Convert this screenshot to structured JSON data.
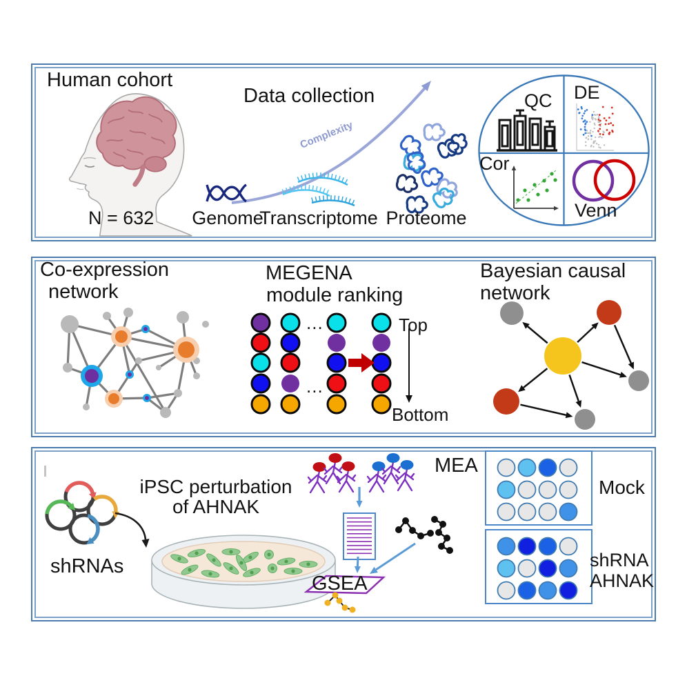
{
  "top_panel": {
    "title": "Human cohort",
    "n_label": "N = 632",
    "data_collection": "Data collection",
    "complexity": "Complexity",
    "omics": [
      "Genome",
      "Transcriptome",
      "Proteome"
    ],
    "quadrants": {
      "qc": "QC",
      "de": "DE",
      "cor": "Cor",
      "venn": "Venn"
    },
    "arrow_color": "#98a4d6",
    "dna_color": "#18277e",
    "rna_colors": [
      "#3fb6ea",
      "#55c6f0",
      "#2fa3dc"
    ],
    "volcano": {
      "blue": "#3b7fd4",
      "red": "#d63226",
      "gray": "#bdbdbd",
      "axis": "#cccccc"
    },
    "scatter": {
      "dot": "#35a535",
      "line": "#56b856",
      "axis": "#3a3a3a",
      "points": [
        [
          16,
          58
        ],
        [
          26,
          44
        ],
        [
          31,
          58
        ],
        [
          40,
          36
        ],
        [
          45,
          50
        ],
        [
          54,
          30
        ],
        [
          58,
          44
        ],
        [
          65,
          20
        ],
        [
          70,
          29
        ]
      ]
    },
    "venn_colors": {
      "left": "#7030a0",
      "right": "#cc0000"
    },
    "proteome_blobs": {
      "colors": [
        "#8fa5dc",
        "#2f63c8",
        "#163a82",
        "#38aade",
        "#2f63c8",
        "#163a82",
        "#1b2f66",
        "#2f63c8",
        "#8fa5dc",
        "#163a82",
        "#38aade"
      ],
      "positions": [
        [
          55,
          19
        ],
        [
          35,
          32
        ],
        [
          72,
          49
        ],
        [
          29,
          60
        ],
        [
          57,
          59
        ],
        [
          85,
          57
        ],
        [
          20,
          90
        ],
        [
          49,
          89
        ],
        [
          84,
          95
        ],
        [
          30,
          124
        ],
        [
          64,
          124
        ]
      ],
      "rotations": [
        0,
        40,
        -20,
        10,
        80,
        -60,
        15,
        -15,
        30,
        0,
        -30
      ]
    }
  },
  "middle_panel": {
    "coexpression_line1": "Co-expression",
    "coexpression_line2": "network",
    "megena_line1": "MEGENA",
    "megena_line2": "module ranking",
    "ellipsis": "...",
    "rank_top": "Top",
    "rank_bottom": "Bottom",
    "bayesian_line1": "Bayesian causal",
    "bayesian_line2": "network",
    "coexpression_graph": {
      "edge_color": "#7d7d7d",
      "colors": {
        "gray": "#b9b9b9",
        "ring": "#f8cfae",
        "core": "#e87c2d",
        "blue_ring": "#1ea7e8",
        "purple_core": "#6b2f9f"
      },
      "nodes": [
        [
          33,
          32,
          13,
          "gray"
        ],
        [
          87,
          20,
          6,
          "gray"
        ],
        [
          118,
          15,
          7,
          "gray"
        ],
        [
          30,
          95,
          7,
          "gray"
        ],
        [
          133,
          85,
          5,
          "gray"
        ],
        [
          162,
          95,
          4,
          "gray"
        ],
        [
          197,
          22,
          9,
          "gray"
        ],
        [
          230,
          32,
          5,
          "gray"
        ],
        [
          217,
          85,
          5,
          "gray"
        ],
        [
          217,
          107,
          5,
          "gray"
        ],
        [
          190,
          132,
          6,
          "gray"
        ],
        [
          172,
          160,
          8,
          "gray"
        ],
        [
          57,
          152,
          5,
          "gray"
        ],
        [
          108,
          50,
          15,
          "hubO",
          9
        ],
        [
          202,
          69,
          19,
          "hubO",
          12
        ],
        [
          97,
          140,
          13,
          "hubO",
          8
        ],
        [
          65,
          107,
          16,
          "hubB",
          10
        ],
        [
          143,
          39,
          6,
          "dotB"
        ],
        [
          120,
          105,
          6,
          "dotB"
        ],
        [
          145,
          139,
          6,
          "dotB"
        ]
      ],
      "edges": [
        [
          0,
          13
        ],
        [
          0,
          16
        ],
        [
          0,
          3
        ],
        [
          1,
          13
        ],
        [
          2,
          13
        ],
        [
          13,
          17
        ],
        [
          13,
          14
        ],
        [
          13,
          18
        ],
        [
          13,
          11
        ],
        [
          16,
          3
        ],
        [
          16,
          15
        ],
        [
          16,
          12
        ],
        [
          16,
          13
        ],
        [
          15,
          19
        ],
        [
          15,
          18
        ],
        [
          19,
          10
        ],
        [
          17,
          14
        ],
        [
          14,
          6
        ],
        [
          14,
          8
        ],
        [
          14,
          9
        ],
        [
          14,
          5
        ],
        [
          14,
          10
        ],
        [
          11,
          10
        ],
        [
          18,
          4
        ],
        [
          19,
          11
        ],
        [
          4,
          14
        ]
      ]
    },
    "megena": {
      "palette": {
        "P": "#7030a0",
        "R": "#ee1014",
        "C": "#0ae0ea",
        "B": "#1010f0",
        "O": "#f5a700"
      },
      "outline_color": "#0a0a0a",
      "arrow_color": "#c00000",
      "columns": [
        [
          "P1",
          "R1",
          "C1",
          "B1",
          "O1"
        ],
        [
          "C1",
          "B1",
          "R1",
          "P0",
          "O1"
        ],
        [
          "C1",
          "P0",
          "B1",
          "R1",
          "O1"
        ],
        [
          "C1",
          "P0",
          "B1",
          "R1",
          "O1"
        ]
      ]
    },
    "bayesian_graph": {
      "colors": {
        "hub": "#f6c51d",
        "driver": "#c23a17",
        "node": "#8f8f8f"
      },
      "edge_color": "#111111",
      "nodes": [
        [
          124,
          84,
          27,
          "hub"
        ],
        [
          50,
          22,
          17,
          "node"
        ],
        [
          191,
          21,
          18,
          "driver"
        ],
        [
          234,
          120,
          15,
          "node"
        ],
        [
          42,
          150,
          19,
          "driver"
        ],
        [
          156,
          176,
          15,
          "node"
        ]
      ],
      "edges": [
        [
          0,
          1
        ],
        [
          0,
          2
        ],
        [
          0,
          3
        ],
        [
          0,
          4
        ],
        [
          0,
          5
        ],
        [
          2,
          3
        ],
        [
          4,
          5
        ]
      ]
    }
  },
  "bottom_panel": {
    "shrnas_label": "shRNAs",
    "ipsc_line1": "iPSC perturbation",
    "ipsc_line2": "of AHNAK",
    "gsea_label": "GSEA",
    "mea_label": "MEA",
    "mock_label": "Mock",
    "shrna_line1": "shRNA",
    "shrna_line2": "AHNAK",
    "plasmids": {
      "ring": "#3f3f3f",
      "items": [
        [
          53,
          25,
          "#e25c5c",
          -160,
          -15
        ],
        [
          26,
          52,
          "#57b857",
          -175,
          -45
        ],
        [
          86,
          45,
          "#e8a93c",
          -125,
          5
        ],
        [
          60,
          72,
          "#4a8fc0",
          -75,
          55
        ]
      ]
    },
    "dish": {
      "rim": "#eef1f3",
      "rim_stroke": "#a9b4b8",
      "media": "#f6e8d8",
      "media_stroke": "#e2cdb8",
      "cell_fill": "#90c890",
      "cell_stroke": "#64b064",
      "nucleus": "#4f9f4f",
      "cells": [
        [
          45,
          40,
          20
        ],
        [
          70,
          32,
          -15
        ],
        [
          95,
          42,
          40
        ],
        [
          120,
          30,
          0
        ],
        [
          148,
          38,
          -30
        ],
        [
          175,
          34,
          15
        ],
        [
          200,
          44,
          -10
        ],
        [
          60,
          56,
          -25
        ],
        [
          90,
          62,
          10
        ],
        [
          120,
          54,
          35
        ],
        [
          150,
          60,
          -20
        ],
        [
          180,
          54,
          25
        ],
        [
          210,
          58,
          0
        ],
        [
          135,
          46,
          60
        ],
        [
          232,
          48,
          0
        ]
      ]
    },
    "figures": {
      "body": "#7d2fc0",
      "red_head": "#c01015",
      "blue_head": "#1b6fd0",
      "red_pos": [
        [
          25,
          29
        ],
        [
          48,
          16
        ],
        [
          67,
          28
        ]
      ],
      "blue_pos": [
        [
          111,
          28
        ],
        [
          132,
          16
        ],
        [
          152,
          26
        ]
      ]
    },
    "list_border": "#4a86c8",
    "list_line_color": "#8a30b0",
    "gsea_border": "#8a30b0",
    "flow_arrow": "#5b9bd5",
    "black_motifs": {
      "color": "#111111",
      "chains": [
        [
          [
            4,
            20
          ],
          [
            14,
            7
          ],
          [
            24,
            21
          ],
          [
            36,
            29
          ],
          [
            50,
            25
          ]
        ],
        [
          [
            56,
            5
          ],
          [
            68,
            12
          ],
          [
            62,
            24
          ],
          [
            74,
            32
          ],
          [
            66,
            44
          ],
          [
            78,
            50
          ]
        ]
      ]
    },
    "yellow_motif": {
      "dot": "#f0b122",
      "line": "#222222",
      "nodes": [
        [
          16,
          5
        ],
        [
          5,
          16
        ],
        [
          22,
          13
        ],
        [
          30,
          23
        ],
        [
          41,
          26
        ]
      ],
      "edges": [
        [
          0,
          1
        ],
        [
          0,
          2
        ],
        [
          2,
          3
        ],
        [
          3,
          4
        ]
      ]
    },
    "mea": {
      "plate_border": "#4a86c8",
      "well_stroke": "#3f7ab0",
      "palette": {
        "g": "#e7e7e7",
        "s": "#5fc1f0",
        "m": "#3f92e8",
        "b": "#1b61e6",
        "d": "#1120e0"
      },
      "mock": [
        [
          "g",
          "s",
          "b",
          "g"
        ],
        [
          "s",
          "g",
          "g",
          "g"
        ],
        [
          "g",
          "g",
          "g",
          "m"
        ]
      ],
      "shrna": [
        [
          "m",
          "d",
          "b",
          "g"
        ],
        [
          "s",
          "g",
          "d",
          "m"
        ],
        [
          "g",
          "b",
          "m",
          "d"
        ]
      ]
    }
  }
}
